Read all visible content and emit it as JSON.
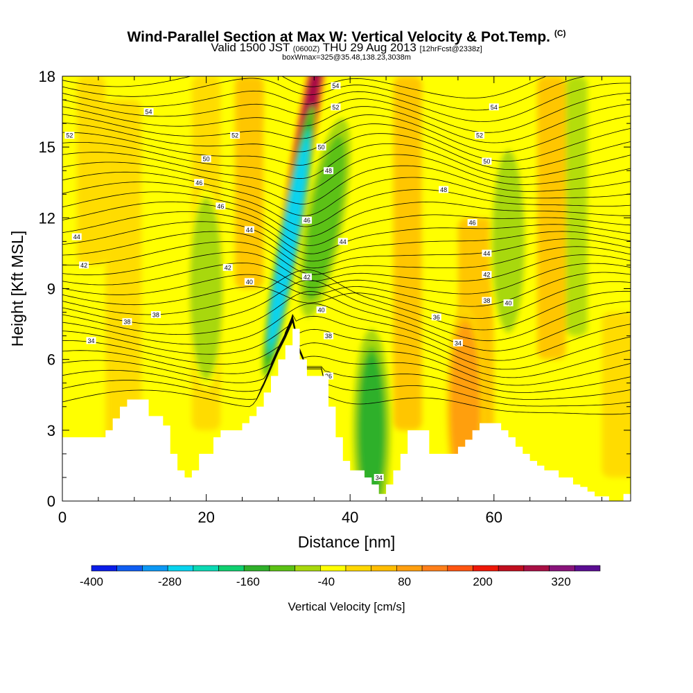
{
  "header": {
    "title": "Wind-Parallel Section at Max W: Vertical Velocity & Pot.Temp.",
    "title_mark": "(C)",
    "valid_prefix": "Valid 1500 JST",
    "valid_utc": "(0600Z)",
    "valid_date": "THU 29 Aug 2013",
    "forecast": "[12hrFcst@2338z]",
    "boxwmax": "boxWmax=325@35.48,138.23,3038m"
  },
  "chart_data": {
    "type": "heatmap",
    "title": "Wind-Parallel Section at Max W: Vertical Velocity & Pot.Temp.",
    "xlabel": "Distance [nm]",
    "ylabel": "Height [Kft MSL]",
    "xlim": [
      0,
      79
    ],
    "ylim": [
      0,
      18
    ],
    "x_ticks": [
      0,
      20,
      40,
      60
    ],
    "x_tick_labels": [
      "0",
      "20",
      "40",
      "60"
    ],
    "y_ticks": [
      0,
      3,
      6,
      9,
      12,
      15,
      18
    ],
    "y_tick_labels": [
      "0",
      "3",
      "6",
      "9",
      "12",
      "15",
      "18"
    ],
    "colorbar": {
      "label": "Vertical Velocity [cm/s]",
      "range": [
        -400,
        380
      ],
      "step": 40,
      "tick_values": [
        -400,
        -280,
        -160,
        -40,
        80,
        200,
        320
      ],
      "tick_labels": [
        "-400",
        "-280",
        "-160",
        "-40",
        "80",
        "200",
        "320"
      ],
      "colors": [
        "#0a1de8",
        "#0f5ef2",
        "#0c98f4",
        "#08d3ee",
        "#0bd9b4",
        "#0fcf6f",
        "#2fb02a",
        "#5bc114",
        "#a8d80c",
        "#ffff00",
        "#ffd700",
        "#ffbd00",
        "#ff9f0f",
        "#ff7f1a",
        "#ff5511",
        "#ee1808",
        "#c00e1e",
        "#a80f44",
        "#88137a",
        "#5a0d92"
      ]
    },
    "terrain_profile": [
      [
        0,
        2.7
      ],
      [
        5,
        2.7
      ],
      [
        6,
        3.0
      ],
      [
        7,
        3.5
      ],
      [
        8,
        4.0
      ],
      [
        9,
        4.3
      ],
      [
        11,
        4.3
      ],
      [
        12,
        3.6
      ],
      [
        14,
        3.2
      ],
      [
        15,
        2.0
      ],
      [
        16,
        1.3
      ],
      [
        17,
        1.0
      ],
      [
        18,
        1.3
      ],
      [
        19,
        2.0
      ],
      [
        21,
        2.7
      ],
      [
        22,
        3.0
      ],
      [
        25,
        3.3
      ],
      [
        26,
        3.6
      ],
      [
        27,
        4.0
      ],
      [
        28,
        4.6
      ],
      [
        29,
        5.3
      ],
      [
        30,
        6.0
      ],
      [
        31,
        6.6
      ],
      [
        32,
        7.3
      ],
      [
        33,
        6.0
      ],
      [
        34,
        5.3
      ],
      [
        36,
        5.3
      ],
      [
        37,
        4.0
      ],
      [
        38,
        2.7
      ],
      [
        39,
        1.7
      ],
      [
        40,
        1.3
      ],
      [
        42,
        1.0
      ],
      [
        43,
        0.7
      ],
      [
        44,
        0.3
      ],
      [
        45,
        0.7
      ],
      [
        46,
        1.3
      ],
      [
        47,
        2.0
      ],
      [
        48,
        3.0
      ],
      [
        50,
        3.0
      ],
      [
        51,
        2.0
      ],
      [
        52,
        2.0
      ],
      [
        54,
        2.0
      ],
      [
        55,
        2.3
      ],
      [
        56,
        2.6
      ],
      [
        57,
        3.0
      ],
      [
        58,
        3.3
      ],
      [
        60,
        3.3
      ],
      [
        61,
        3.0
      ],
      [
        62,
        2.7
      ],
      [
        63,
        2.3
      ],
      [
        64,
        2.0
      ],
      [
        65,
        1.7
      ],
      [
        66,
        1.5
      ],
      [
        67,
        1.3
      ],
      [
        68,
        1.3
      ],
      [
        69,
        1.0
      ],
      [
        70,
        1.0
      ],
      [
        71,
        0.7
      ],
      [
        72,
        0.6
      ],
      [
        73,
        0.4
      ],
      [
        74,
        0.2
      ],
      [
        75,
        0.2
      ],
      [
        76,
        0.0
      ],
      [
        78,
        0.3
      ],
      [
        79,
        0.3
      ]
    ],
    "velocity_features": [
      {
        "x": 33.5,
        "y": 15,
        "value": 300
      },
      {
        "x": 31.5,
        "y": 11,
        "value": -260
      },
      {
        "x": 36.5,
        "y": 12,
        "value": -120
      },
      {
        "x": 43,
        "y": 3,
        "value": -130
      },
      {
        "x": 56,
        "y": 4,
        "value": 100
      },
      {
        "x": 20,
        "y": 9,
        "value": -80
      },
      {
        "x": 62,
        "y": 11,
        "value": -80
      }
    ],
    "theta_contour_labels": [
      {
        "value": "52",
        "x": 1,
        "y": 15.5
      },
      {
        "value": "54",
        "x": 12,
        "y": 16.5
      },
      {
        "value": "52",
        "x": 24,
        "y": 15.5
      },
      {
        "value": "50",
        "x": 20,
        "y": 14.5
      },
      {
        "value": "46",
        "x": 19,
        "y": 13.5
      },
      {
        "value": "46",
        "x": 22,
        "y": 12.5
      },
      {
        "value": "44",
        "x": 26,
        "y": 11.5
      },
      {
        "value": "44",
        "x": 2,
        "y": 11.2
      },
      {
        "value": "42",
        "x": 3,
        "y": 10
      },
      {
        "value": "42",
        "x": 23,
        "y": 9.9
      },
      {
        "value": "40",
        "x": 26,
        "y": 9.3
      },
      {
        "value": "38",
        "x": 9,
        "y": 7.6
      },
      {
        "value": "38",
        "x": 13,
        "y": 7.9
      },
      {
        "value": "34",
        "x": 4,
        "y": 6.8
      },
      {
        "value": "54",
        "x": 38,
        "y": 17.6
      },
      {
        "value": "52",
        "x": 38,
        "y": 16.7
      },
      {
        "value": "50",
        "x": 36,
        "y": 15
      },
      {
        "value": "48",
        "x": 37,
        "y": 14
      },
      {
        "value": "46",
        "x": 34,
        "y": 11.9
      },
      {
        "value": "44",
        "x": 39,
        "y": 11
      },
      {
        "value": "42",
        "x": 34,
        "y": 9.5
      },
      {
        "value": "40",
        "x": 36,
        "y": 8.1
      },
      {
        "value": "38",
        "x": 37,
        "y": 7.0
      },
      {
        "value": "36",
        "x": 37,
        "y": 5.3
      },
      {
        "value": "34",
        "x": 44,
        "y": 1.0
      },
      {
        "value": "54",
        "x": 60,
        "y": 16.7
      },
      {
        "value": "52",
        "x": 58,
        "y": 15.5
      },
      {
        "value": "50",
        "x": 59,
        "y": 14.4
      },
      {
        "value": "48",
        "x": 53,
        "y": 13.2
      },
      {
        "value": "46",
        "x": 57,
        "y": 11.8
      },
      {
        "value": "44",
        "x": 59,
        "y": 10.5
      },
      {
        "value": "42",
        "x": 59,
        "y": 9.6
      },
      {
        "value": "40",
        "x": 62,
        "y": 8.4
      },
      {
        "value": "38",
        "x": 59,
        "y": 8.5
      },
      {
        "value": "36",
        "x": 52,
        "y": 7.8
      },
      {
        "value": "34",
        "x": 55,
        "y": 6.7
      }
    ]
  }
}
